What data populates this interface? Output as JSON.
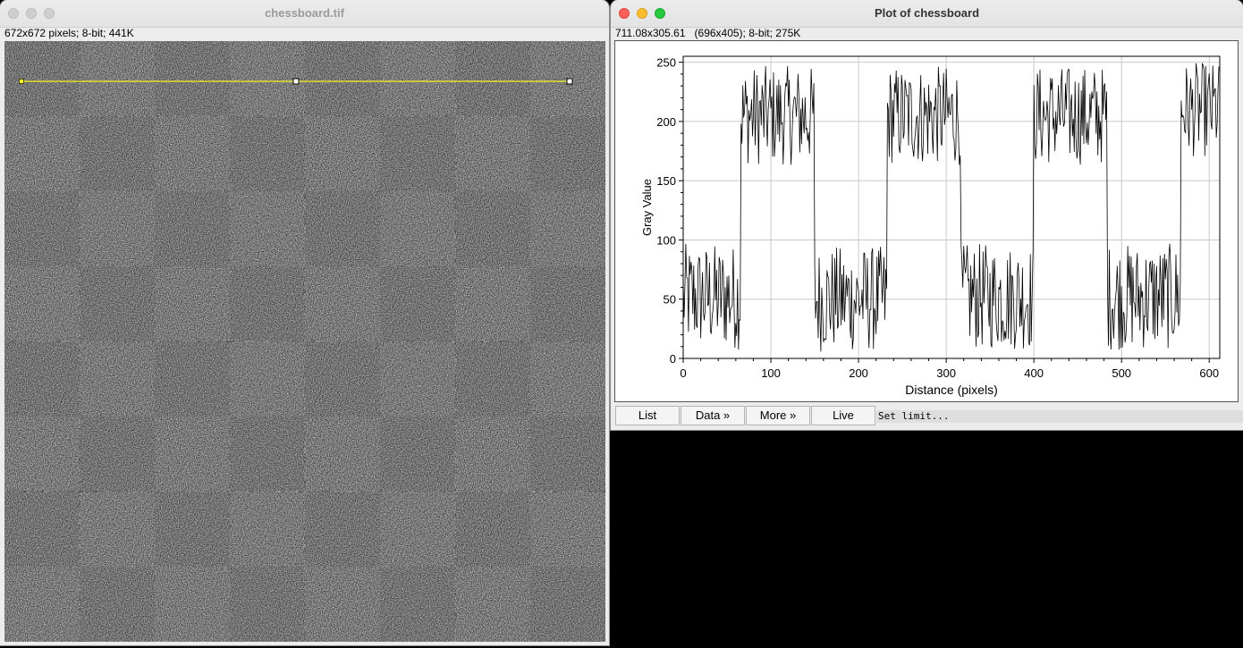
{
  "image_window": {
    "title": "chessboard.tif",
    "info": "672x672 pixels; 8-bit; 441K",
    "checkerboard": {
      "rows": 8,
      "cols": 8,
      "light_color": "#c4c4c4",
      "dark_color": "#2e2e2e"
    },
    "line_selection_color": "#f5f526"
  },
  "plot_window": {
    "title": "Plot of chessboard",
    "info": "711.08x305.61   (696x405); 8-bit; 275K",
    "buttons": {
      "list": "List",
      "data": "Data »",
      "more": "More »",
      "live": "Live"
    },
    "status": "Set limit..."
  },
  "chart_data": {
    "type": "line",
    "xlabel": "Distance (pixels)",
    "ylabel": "Gray Value",
    "xlim": [
      0,
      612
    ],
    "ylim": [
      0,
      255
    ],
    "xticks": [
      "0",
      "100",
      "200",
      "300",
      "400",
      "500",
      "600"
    ],
    "yticks": [
      "0",
      "50",
      "100",
      "150",
      "200",
      "250"
    ],
    "grid": true,
    "segments": [
      {
        "x_start": 0,
        "x_end": 66,
        "mean": 52,
        "spread": 45
      },
      {
        "x_start": 66,
        "x_end": 150,
        "mean": 205,
        "spread": 42
      },
      {
        "x_start": 150,
        "x_end": 233,
        "mean": 50,
        "spread": 45
      },
      {
        "x_start": 233,
        "x_end": 317,
        "mean": 205,
        "spread": 42
      },
      {
        "x_start": 317,
        "x_end": 400,
        "mean": 52,
        "spread": 45
      },
      {
        "x_start": 400,
        "x_end": 484,
        "mean": 205,
        "spread": 42
      },
      {
        "x_start": 484,
        "x_end": 568,
        "mean": 52,
        "spread": 45
      },
      {
        "x_start": 568,
        "x_end": 612,
        "mean": 210,
        "spread": 40
      }
    ]
  }
}
